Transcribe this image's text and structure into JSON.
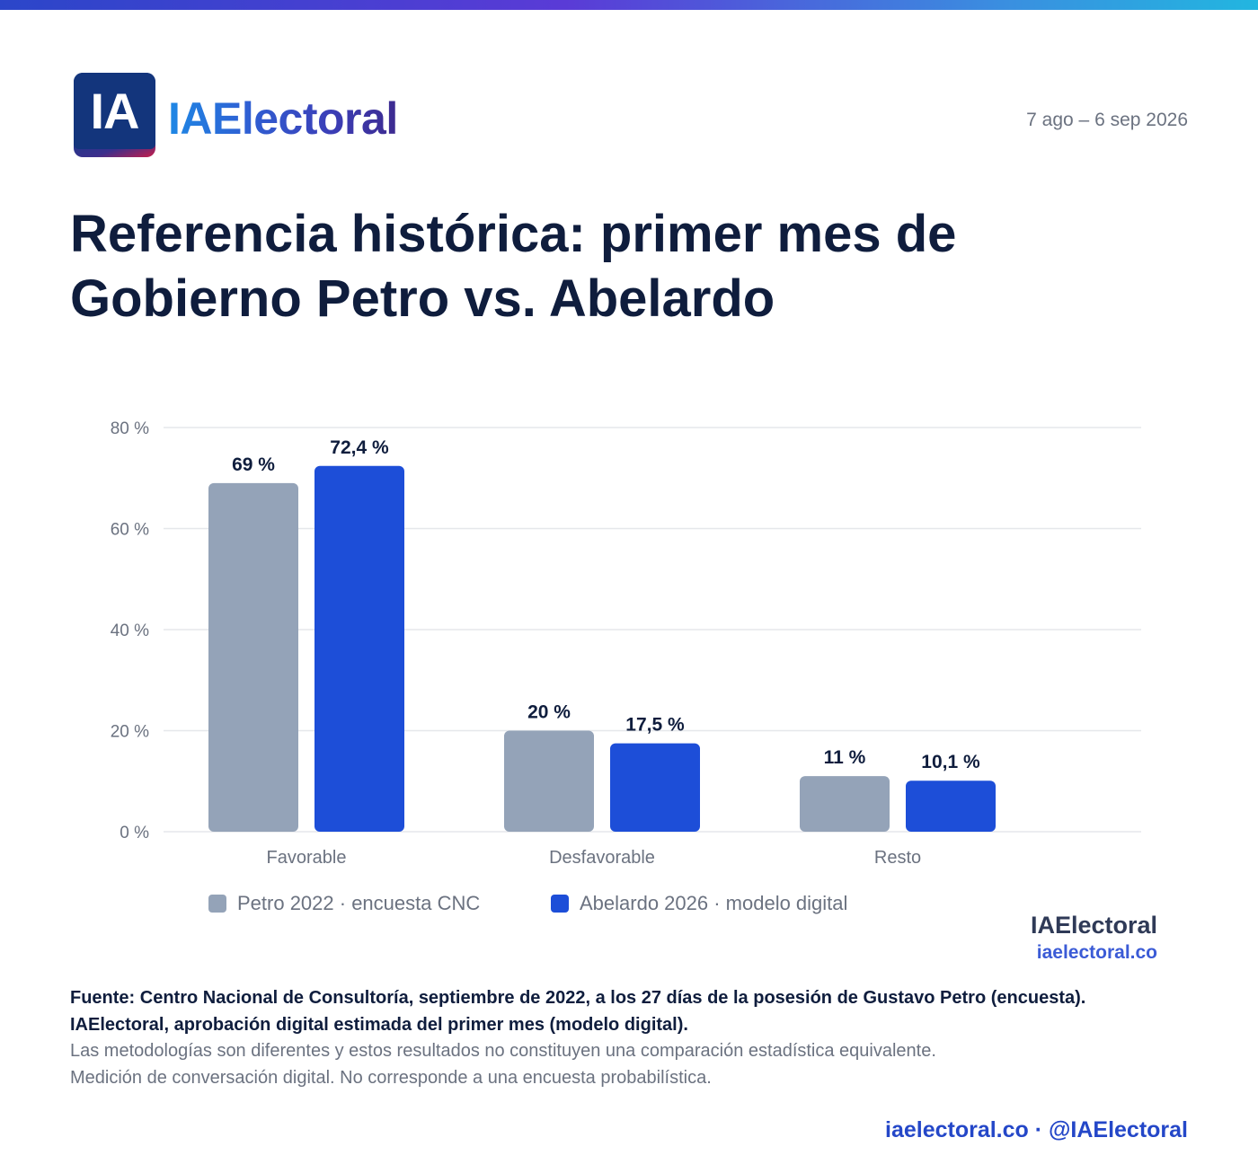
{
  "header": {
    "logo_letters": "IA",
    "brand": "IAElectoral",
    "date_range": "7 ago – 6 sep 2026"
  },
  "title": {
    "line1": "Referencia histórica: primer mes de",
    "line2": "Gobierno Petro vs. Abelardo"
  },
  "chart_data": {
    "type": "bar",
    "categories": [
      "Favorable",
      "Desfavorable",
      "Resto"
    ],
    "series": [
      {
        "name": "Petro 2022 · encuesta CNC",
        "values": [
          69,
          20,
          11
        ],
        "labels": [
          "69 %",
          "20 %",
          "11 %"
        ],
        "color": "#94a3b8"
      },
      {
        "name": "Abelardo 2026 · modelo digital",
        "values": [
          72.4,
          17.5,
          10.1
        ],
        "labels": [
          "72,4 %",
          "17,5 %",
          "10,1 %"
        ],
        "color": "#1d4ed8"
      }
    ],
    "ylim": [
      0,
      80
    ],
    "yticks": [
      0,
      20,
      40,
      60,
      80
    ],
    "ytick_labels": [
      "0 %",
      "20 %",
      "40 %",
      "60 %",
      "80 %"
    ],
    "grid": true,
    "legend_position": "bottom-left"
  },
  "watermark": {
    "name": "IAElectoral",
    "url": "iaelectoral.co"
  },
  "source": {
    "text": "Fuente: Centro Nacional de Consultoría, septiembre de 2022, a los 27 días de la posesión de Gustavo Petro (encuesta). IAElectoral, aprobación digital estimada del primer mes (modelo digital).",
    "note1": "Las metodologías son diferentes y estos resultados no constituyen una comparación estadística equivalente.",
    "note2": "Medición de conversación digital. No corresponde a una encuesta probabilística."
  },
  "footer": {
    "text": "iaelectoral.co · @IAElectoral"
  }
}
